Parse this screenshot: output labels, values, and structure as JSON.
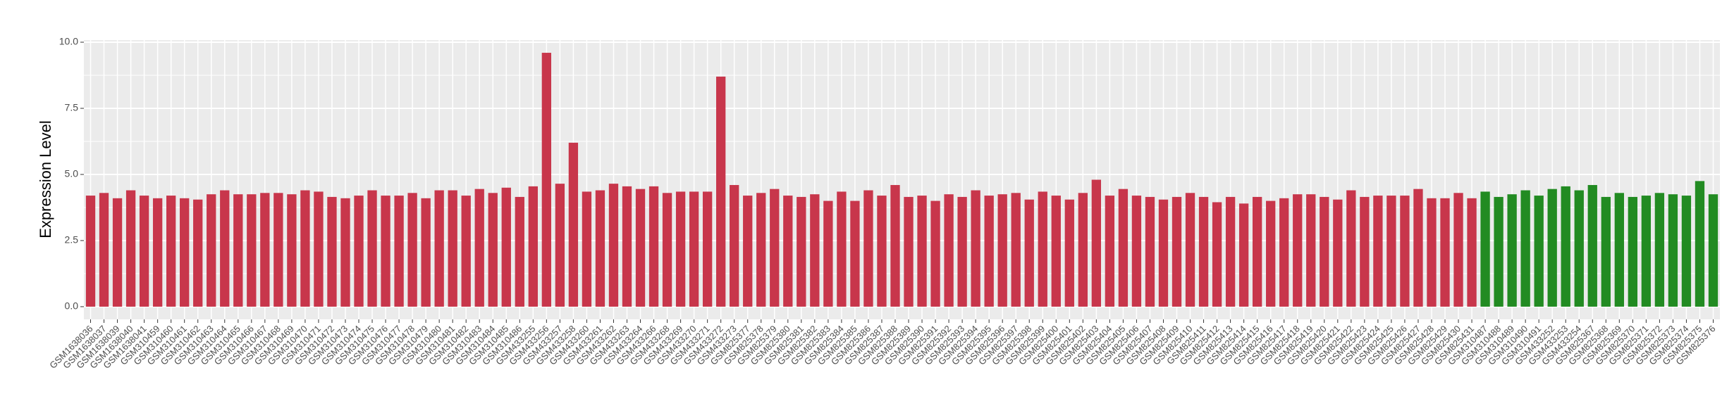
{
  "chart_data": {
    "type": "bar",
    "ylabel": "Expression Level",
    "categories": [
      "GSM1638036",
      "GSM1638037",
      "GSM1638039",
      "GSM1638040",
      "GSM1638041",
      "GSM310459",
      "GSM310460",
      "GSM310461",
      "GSM310462",
      "GSM310463",
      "GSM310464",
      "GSM310465",
      "GSM310466",
      "GSM310467",
      "GSM310468",
      "GSM310469",
      "GSM310470",
      "GSM310471",
      "GSM310472",
      "GSM310473",
      "GSM310474",
      "GSM310475",
      "GSM310476",
      "GSM310477",
      "GSM310478",
      "GSM310479",
      "GSM310480",
      "GSM310481",
      "GSM310482",
      "GSM310483",
      "GSM310484",
      "GSM310485",
      "GSM310486",
      "GSM433255",
      "GSM433256",
      "GSM433257",
      "GSM433258",
      "GSM433260",
      "GSM433261",
      "GSM433262",
      "GSM433263",
      "GSM433264",
      "GSM433266",
      "GSM433268",
      "GSM433269",
      "GSM433270",
      "GSM433271",
      "GSM433272",
      "GSM433273",
      "GSM825377",
      "GSM825378",
      "GSM825379",
      "GSM825380",
      "GSM825381",
      "GSM825382",
      "GSM825383",
      "GSM825384",
      "GSM825385",
      "GSM825386",
      "GSM825387",
      "GSM825388",
      "GSM825389",
      "GSM825390",
      "GSM825391",
      "GSM825392",
      "GSM825393",
      "GSM825394",
      "GSM825395",
      "GSM825396",
      "GSM825397",
      "GSM825398",
      "GSM825399",
      "GSM825400",
      "GSM825401",
      "GSM825402",
      "GSM825403",
      "GSM825404",
      "GSM825405",
      "GSM825406",
      "GSM825407",
      "GSM825408",
      "GSM825409",
      "GSM825410",
      "GSM825411",
      "GSM825412",
      "GSM825413",
      "GSM825414",
      "GSM825415",
      "GSM825416",
      "GSM825417",
      "GSM825418",
      "GSM825419",
      "GSM825420",
      "GSM825421",
      "GSM825422",
      "GSM825423",
      "GSM825424",
      "GSM825425",
      "GSM825426",
      "GSM825427",
      "GSM825428",
      "GSM825429",
      "GSM825430",
      "GSM825431",
      "GSM310487",
      "GSM310488",
      "GSM310489",
      "GSM310490",
      "GSM310491",
      "GSM433252",
      "GSM433253",
      "GSM433254",
      "GSM825367",
      "GSM825368",
      "GSM825369",
      "GSM825370",
      "GSM825371",
      "GSM825372",
      "GSM825373",
      "GSM825374",
      "GSM825375",
      "GSM825376"
    ],
    "values": [
      4.2,
      4.3,
      4.1,
      4.4,
      4.2,
      4.1,
      4.2,
      4.1,
      4.05,
      4.25,
      4.4,
      4.25,
      4.25,
      4.3,
      4.3,
      4.25,
      4.4,
      4.35,
      4.15,
      4.1,
      4.2,
      4.4,
      4.2,
      4.2,
      4.3,
      4.1,
      4.4,
      4.4,
      4.2,
      4.45,
      4.3,
      4.5,
      4.15,
      4.55,
      9.6,
      4.65,
      6.2,
      4.35,
      4.4,
      4.65,
      4.55,
      4.45,
      4.55,
      4.3,
      4.35,
      4.35,
      4.35,
      8.7,
      4.6,
      4.2,
      4.3,
      4.45,
      4.2,
      4.15,
      4.25,
      4.0,
      4.35,
      4.0,
      4.4,
      4.2,
      4.6,
      4.15,
      4.2,
      4.0,
      4.25,
      4.15,
      4.4,
      4.2,
      4.25,
      4.3,
      4.05,
      4.35,
      4.2,
      4.05,
      4.3,
      4.8,
      4.2,
      4.45,
      4.2,
      4.15,
      4.05,
      4.15,
      4.3,
      4.15,
      3.95,
      4.15,
      3.9,
      4.15,
      4.0,
      4.1,
      4.25,
      4.25,
      4.15,
      4.05,
      4.4,
      4.15,
      4.2,
      4.2,
      4.2,
      4.45,
      4.1,
      4.1,
      4.3,
      4.1,
      4.35,
      4.15,
      4.25,
      4.4,
      4.2,
      4.45,
      4.55,
      4.4,
      4.6,
      4.15,
      4.3,
      4.15,
      4.2,
      4.3,
      4.25,
      4.2,
      4.75,
      4.25
    ],
    "colors": [
      "#c8364b",
      "#c8364b",
      "#c8364b",
      "#c8364b",
      "#c8364b",
      "#c8364b",
      "#c8364b",
      "#c8364b",
      "#c8364b",
      "#c8364b",
      "#c8364b",
      "#c8364b",
      "#c8364b",
      "#c8364b",
      "#c8364b",
      "#c8364b",
      "#c8364b",
      "#c8364b",
      "#c8364b",
      "#c8364b",
      "#c8364b",
      "#c8364b",
      "#c8364b",
      "#c8364b",
      "#c8364b",
      "#c8364b",
      "#c8364b",
      "#c8364b",
      "#c8364b",
      "#c8364b",
      "#c8364b",
      "#c8364b",
      "#c8364b",
      "#c8364b",
      "#c8364b",
      "#c8364b",
      "#c8364b",
      "#c8364b",
      "#c8364b",
      "#c8364b",
      "#c8364b",
      "#c8364b",
      "#c8364b",
      "#c8364b",
      "#c8364b",
      "#c8364b",
      "#c8364b",
      "#c8364b",
      "#c8364b",
      "#c8364b",
      "#c8364b",
      "#c8364b",
      "#c8364b",
      "#c8364b",
      "#c8364b",
      "#c8364b",
      "#c8364b",
      "#c8364b",
      "#c8364b",
      "#c8364b",
      "#c8364b",
      "#c8364b",
      "#c8364b",
      "#c8364b",
      "#c8364b",
      "#c8364b",
      "#c8364b",
      "#c8364b",
      "#c8364b",
      "#c8364b",
      "#c8364b",
      "#c8364b",
      "#c8364b",
      "#c8364b",
      "#c8364b",
      "#c8364b",
      "#c8364b",
      "#c8364b",
      "#c8364b",
      "#c8364b",
      "#c8364b",
      "#c8364b",
      "#c8364b",
      "#c8364b",
      "#c8364b",
      "#c8364b",
      "#c8364b",
      "#c8364b",
      "#c8364b",
      "#c8364b",
      "#c8364b",
      "#c8364b",
      "#c8364b",
      "#c8364b",
      "#c8364b",
      "#c8364b",
      "#c8364b",
      "#c8364b",
      "#c8364b",
      "#c8364b",
      "#c8364b",
      "#c8364b",
      "#c8364b",
      "#c8364b",
      "#228b22",
      "#228b22",
      "#228b22",
      "#228b22",
      "#228b22",
      "#228b22",
      "#228b22",
      "#228b22",
      "#228b22",
      "#228b22",
      "#228b22",
      "#228b22",
      "#228b22",
      "#228b22",
      "#228b22",
      "#228b22",
      "#228b22",
      "#228b22"
    ],
    "ylim": [
      -0.48,
      10.08
    ],
    "yticks": [
      {
        "value": 0,
        "label": "0.0"
      },
      2.5,
      {
        "value": 5,
        "label": "5.0"
      },
      7.5,
      {
        "value": 10,
        "label": "10.0"
      }
    ],
    "grid": true
  }
}
